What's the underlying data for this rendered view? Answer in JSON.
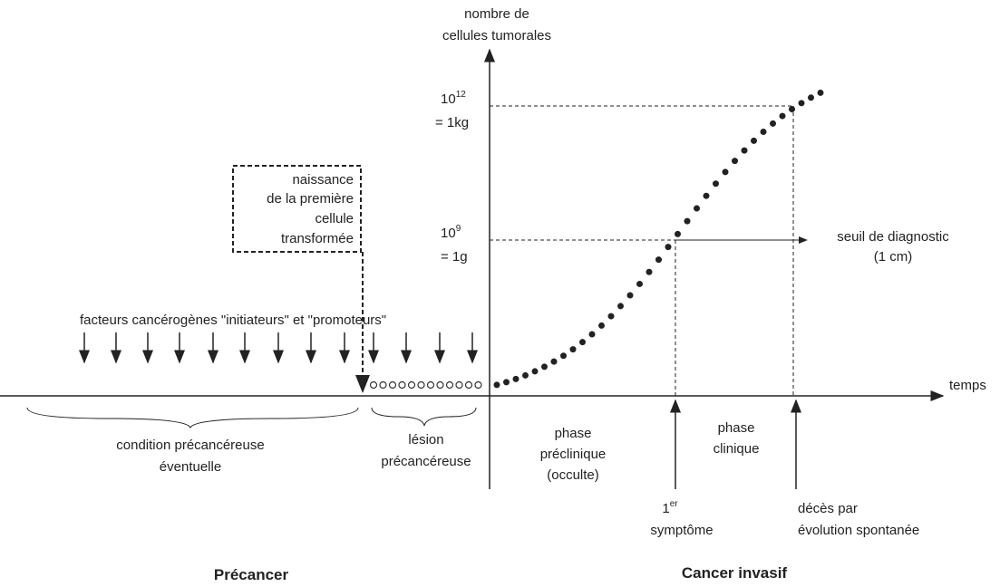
{
  "axis": {
    "y_label": [
      "nombre de",
      "cellules tumorales"
    ],
    "x_label": "temps"
  },
  "levels": [
    {
      "base": "10",
      "exponent": "12",
      "equals": "= 1kg"
    },
    {
      "base": "10",
      "exponent": "9",
      "equals": "= 1g"
    }
  ],
  "box": [
    "naissance",
    "de la première",
    "cellule",
    "transformée"
  ],
  "threshold": [
    "seuil de diagnostic",
    "(1 cm)"
  ],
  "factors": "facteurs cancérogènes \"initiateurs\" et \"promoteurs\"",
  "periods": {
    "condition": [
      "condition précancéreuse",
      "éventuelle"
    ],
    "lesion": [
      "lésion",
      "précancéreuse"
    ],
    "preclinical": [
      "phase",
      "préclinique",
      "(occulte)"
    ],
    "clinical": [
      "phase",
      "clinique"
    ]
  },
  "events": {
    "first_symptom": {
      "number": "1",
      "suffix": "er",
      "text": "symptôme"
    },
    "death": [
      "décès par",
      "évolution spontanée"
    ]
  },
  "stages": {
    "precancer": "Précancer",
    "invasive": "Cancer invasif"
  }
}
